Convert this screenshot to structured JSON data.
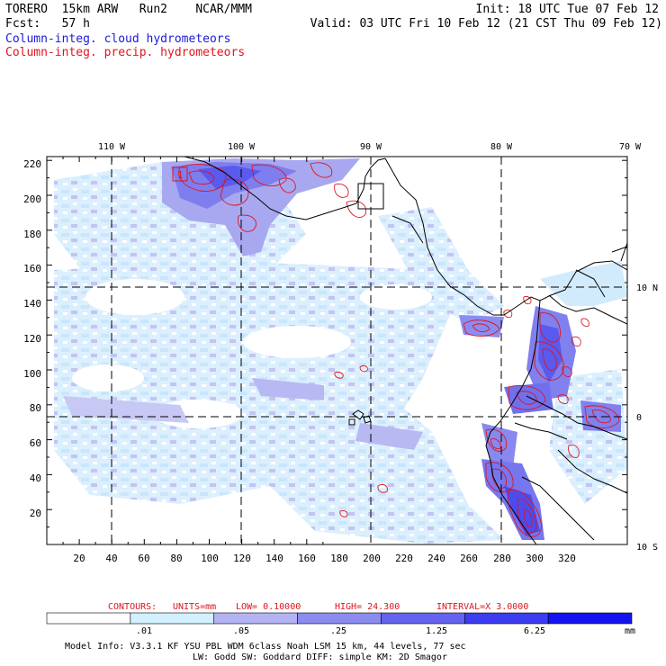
{
  "header": {
    "left_line1": "TORERO  15km ARW   Run2    NCAR/MMM",
    "left_line2": "Fcst:   57 h",
    "init": "Init: 18 UTC Tue 07 Feb 12",
    "valid": "Valid: 03 UTC Fri 10 Feb 12 (21 CST Thu 09 Feb 12)",
    "field1": "Column-integ. cloud hydrometeors",
    "field2": "Column-integ. precip. hydrometeors"
  },
  "top_lon_labels": [
    "110 W",
    "100 W",
    "90 W",
    "80 W",
    "70 W"
  ],
  "right_lat_labels": [
    "10 N",
    "0",
    "10 S"
  ],
  "y_ticks": [
    "220",
    "200",
    "180",
    "160",
    "140",
    "120",
    "100",
    "80",
    "60",
    "40",
    "20"
  ],
  "x_ticks": [
    "20",
    "40",
    "60",
    "80",
    "100",
    "120",
    "140",
    "160",
    "180",
    "200",
    "220",
    "240",
    "260",
    "280",
    "300",
    "320"
  ],
  "contour_info": {
    "label": "CONTOURS:",
    "units": "UNITS=mm",
    "low": "LOW= 0.10000",
    "high": "HIGH=  24.300",
    "interval": "INTERVAL=X  3.0000"
  },
  "colorbar": {
    "tick_labels": [
      ".01",
      ".05",
      ".25",
      "1.25",
      "6.25"
    ],
    "unit": "mm",
    "colors": [
      "#ffffff",
      "#d2f0ff",
      "#b4b4f5",
      "#8c8cf0",
      "#6464ee",
      "#3c3cf0",
      "#1414f0"
    ]
  },
  "model_info": {
    "line1": "Model Info: V3.3.1   KF     YSU PBL  WDM 6class  Noah LSM  15 km,   44 levels,   77 sec",
    "line2": "LW: Godd SW: Goddard DIFF: simple KM: 2D Smagor"
  },
  "map_labels": {
    "box_label": "1"
  }
}
